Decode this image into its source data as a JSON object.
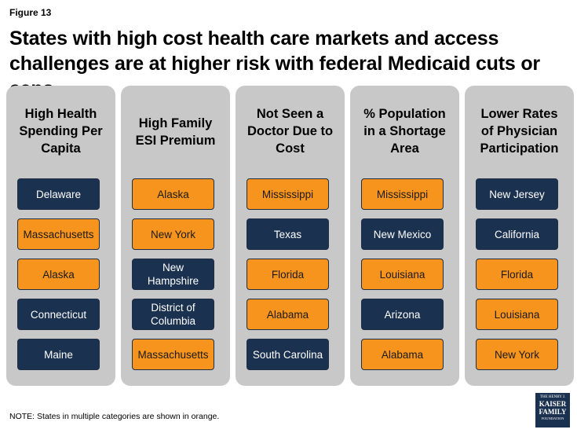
{
  "chart_data": {
    "type": "table",
    "figure_label": "Figure 13",
    "title": "States with high cost health care markets and access challenges are at higher risk with federal Medicaid cuts or caps.",
    "columns": [
      {
        "title": "High Health Spending Per Capita",
        "title_lines": [
          "High Health",
          "Spending Per",
          "Capita"
        ],
        "states": [
          {
            "lines": [
              "Delaware"
            ],
            "multiple": false
          },
          {
            "lines": [
              "Massachusetts"
            ],
            "multiple": true
          },
          {
            "lines": [
              "Alaska"
            ],
            "multiple": true
          },
          {
            "lines": [
              "Connecticut"
            ],
            "multiple": false
          },
          {
            "lines": [
              "Maine"
            ],
            "multiple": false
          }
        ]
      },
      {
        "title": "High Family ESI Premium",
        "title_lines": [
          "High Family",
          "ESI Premium"
        ],
        "states": [
          {
            "lines": [
              "Alaska"
            ],
            "multiple": true
          },
          {
            "lines": [
              "New York"
            ],
            "multiple": true
          },
          {
            "lines": [
              "New",
              "Hampshire"
            ],
            "multiple": false
          },
          {
            "lines": [
              "District of",
              "Columbia"
            ],
            "multiple": false
          },
          {
            "lines": [
              "Massachusetts"
            ],
            "multiple": true
          }
        ]
      },
      {
        "title": "Not Seen a Doctor Due to Cost",
        "title_lines": [
          "Not Seen a",
          "Doctor Due to",
          "Cost"
        ],
        "states": [
          {
            "lines": [
              "Mississippi"
            ],
            "multiple": true
          },
          {
            "lines": [
              "Texas"
            ],
            "multiple": false
          },
          {
            "lines": [
              "Florida"
            ],
            "multiple": true
          },
          {
            "lines": [
              "Alabama"
            ],
            "multiple": true
          },
          {
            "lines": [
              "South Carolina"
            ],
            "multiple": false
          }
        ]
      },
      {
        "title": "% Population in a Shortage Area",
        "title_lines": [
          "% Population",
          "in a Shortage",
          "Area"
        ],
        "states": [
          {
            "lines": [
              "Mississippi"
            ],
            "multiple": true
          },
          {
            "lines": [
              "New Mexico"
            ],
            "multiple": false
          },
          {
            "lines": [
              "Louisiana"
            ],
            "multiple": true
          },
          {
            "lines": [
              "Arizona"
            ],
            "multiple": false
          },
          {
            "lines": [
              "Alabama"
            ],
            "multiple": true
          }
        ]
      },
      {
        "title": "Lower Rates of Physician Participation",
        "title_lines": [
          "Lower Rates",
          "of Physician",
          "Participation"
        ],
        "states": [
          {
            "lines": [
              "New Jersey"
            ],
            "multiple": false
          },
          {
            "lines": [
              "California"
            ],
            "multiple": false
          },
          {
            "lines": [
              "Florida"
            ],
            "multiple": true
          },
          {
            "lines": [
              "Louisiana"
            ],
            "multiple": true
          },
          {
            "lines": [
              "New York"
            ],
            "multiple": true
          }
        ]
      }
    ],
    "note": "NOTE: States in multiple categories are shown in orange.",
    "colors": {
      "single": "#1b3150",
      "multiple": "#f7941d",
      "panel": "#c8c8c8"
    }
  },
  "logo": {
    "line1": "THE HENRY J.",
    "line2": "KAISER",
    "line3": "FAMILY",
    "line4": "FOUNDATION"
  }
}
